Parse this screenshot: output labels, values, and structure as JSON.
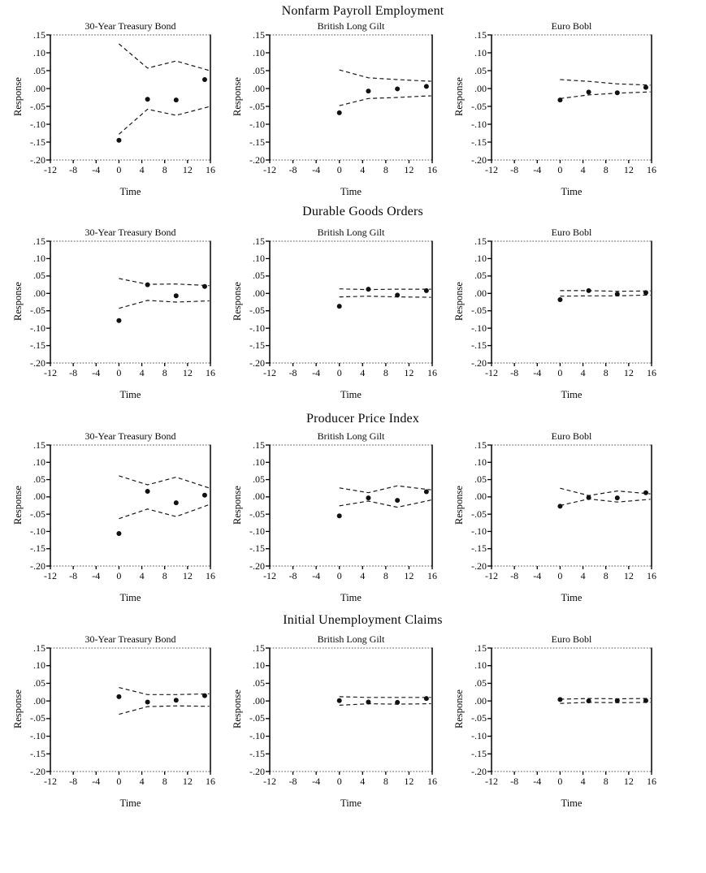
{
  "figure_title": "",
  "chart_data": {
    "type": "scatter",
    "description": "Grid of impulse-response scatter plots with dashed confidence bands",
    "xlabel": "Time",
    "ylabel": "Response",
    "xlim": [
      -12,
      16
    ],
    "ylim": [
      -0.2,
      0.15
    ],
    "xticks": [
      -12,
      -8,
      -4,
      0,
      4,
      8,
      12,
      16
    ],
    "xtick_labels": [
      "-12",
      "-8",
      "-4",
      "0",
      "4",
      "8",
      "12",
      "16"
    ],
    "yticks": [
      0.15,
      0.1,
      0.05,
      0.0,
      -0.05,
      -0.1,
      -0.15,
      -0.2
    ],
    "ytick_labels": [
      ".15",
      ".10",
      ".05",
      ".00",
      "-.05",
      "-.10",
      "-.15",
      "-.20"
    ],
    "x": [
      0,
      5,
      10,
      15
    ],
    "grid": false,
    "legend": false,
    "rows": [
      {
        "title": "Nonfarm Payroll Employment",
        "charts": [
          {
            "title": "30-Year Treasury Bond",
            "response": [
              -0.145,
              -0.03,
              -0.032,
              0.025
            ],
            "upper_band": [
              0.125,
              0.057,
              0.077,
              0.054
            ],
            "lower_band": [
              -0.128,
              -0.058,
              -0.075,
              -0.054
            ]
          },
          {
            "title": "British Long Gilt",
            "response": [
              -0.068,
              -0.007,
              -0.001,
              0.006
            ],
            "upper_band": [
              0.052,
              0.03,
              0.025,
              0.021
            ],
            "lower_band": [
              -0.048,
              -0.028,
              -0.025,
              -0.021
            ]
          },
          {
            "title": "Euro Bobl",
            "response": [
              -0.032,
              -0.01,
              -0.012,
              0.003
            ],
            "upper_band": [
              0.025,
              0.02,
              0.013,
              0.01
            ],
            "lower_band": [
              -0.028,
              -0.018,
              -0.013,
              -0.01
            ]
          }
        ]
      },
      {
        "title": "Durable Goods Orders",
        "charts": [
          {
            "title": "30-Year Treasury Bond",
            "response": [
              -0.078,
              0.025,
              -0.007,
              0.02
            ],
            "upper_band": [
              0.043,
              0.026,
              0.027,
              0.023
            ],
            "lower_band": [
              -0.043,
              -0.02,
              -0.025,
              -0.022
            ]
          },
          {
            "title": "British Long Gilt",
            "response": [
              -0.037,
              0.012,
              -0.005,
              0.008
            ],
            "upper_band": [
              0.013,
              0.011,
              0.012,
              0.012
            ],
            "lower_band": [
              -0.01,
              -0.008,
              -0.01,
              -0.011
            ]
          },
          {
            "title": "Euro Bobl",
            "response": [
              -0.018,
              0.008,
              -0.002,
              0.002
            ],
            "upper_band": [
              0.008,
              0.008,
              0.006,
              0.007
            ],
            "lower_band": [
              -0.008,
              -0.007,
              -0.007,
              -0.005
            ]
          }
        ]
      },
      {
        "title": "Producer Price Index",
        "charts": [
          {
            "title": "30-Year Treasury Bond",
            "response": [
              -0.106,
              0.016,
              -0.017,
              0.005
            ],
            "upper_band": [
              0.061,
              0.035,
              0.057,
              0.03
            ],
            "lower_band": [
              -0.063,
              -0.035,
              -0.057,
              -0.027
            ]
          },
          {
            "title": "British Long Gilt",
            "response": [
              -0.055,
              -0.003,
              -0.01,
              0.015
            ],
            "upper_band": [
              0.026,
              0.012,
              0.032,
              0.022
            ],
            "lower_band": [
              -0.026,
              -0.012,
              -0.03,
              -0.012
            ]
          },
          {
            "title": "Euro Bobl",
            "response": [
              -0.027,
              -0.002,
              -0.003,
              0.012
            ],
            "upper_band": [
              0.025,
              0.004,
              0.017,
              0.01
            ],
            "lower_band": [
              -0.025,
              -0.006,
              -0.015,
              -0.008
            ]
          }
        ]
      },
      {
        "title": "Initial Unemployment Claims",
        "charts": [
          {
            "title": "30-Year Treasury Bond",
            "response": [
              0.012,
              -0.003,
              0.002,
              0.015
            ],
            "upper_band": [
              0.038,
              0.018,
              0.018,
              0.02
            ],
            "lower_band": [
              -0.038,
              -0.016,
              -0.014,
              -0.015
            ]
          },
          {
            "title": "British Long Gilt",
            "response": [
              0.001,
              -0.003,
              -0.004,
              0.007
            ],
            "upper_band": [
              0.012,
              0.01,
              0.01,
              0.01
            ],
            "lower_band": [
              -0.012,
              -0.008,
              -0.009,
              -0.008
            ]
          },
          {
            "title": "Euro Bobl",
            "response": [
              0.004,
              0.0,
              0.001,
              0.001
            ],
            "upper_band": [
              0.005,
              0.007,
              0.006,
              0.007
            ],
            "lower_band": [
              -0.007,
              -0.004,
              -0.005,
              -0.004
            ]
          }
        ]
      }
    ]
  },
  "colors": {
    "point": "#111111",
    "band_line": "#1a1a1a",
    "axis": "#000000",
    "frame_dotted": "#808080",
    "text": "#0a0a0a",
    "background": "#ffffff"
  }
}
